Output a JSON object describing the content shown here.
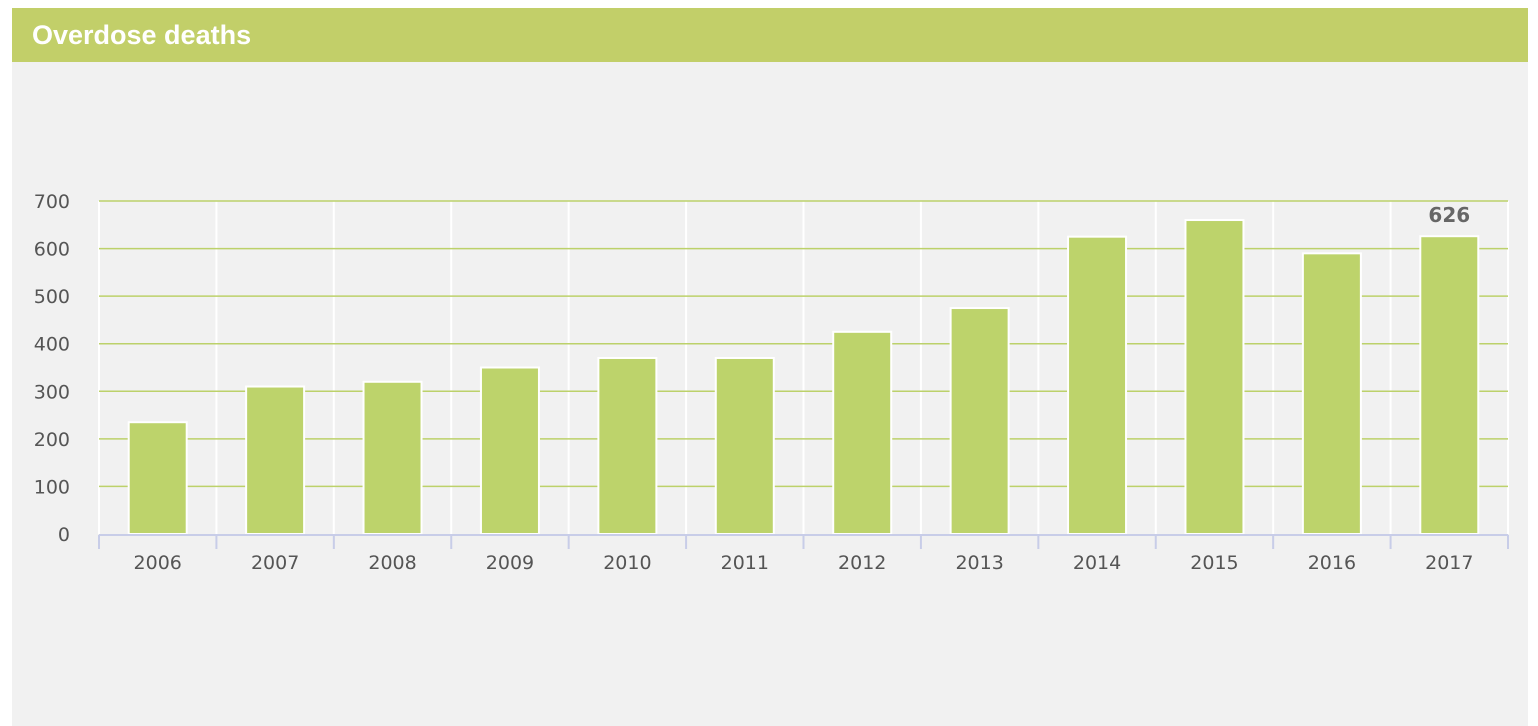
{
  "header": {
    "title": "Overdose deaths"
  },
  "colors": {
    "header_bg": "#c2cf69",
    "bar": "#bdd36b",
    "bar_edge": "#ffffff",
    "gridline": "#bcd16a",
    "panel_bg": "#f1f1f1",
    "axis": "#c8cde8"
  },
  "chart_data": {
    "type": "bar",
    "title": "Overdose deaths",
    "xlabel": "",
    "ylabel": "",
    "categories": [
      "2006",
      "2007",
      "2008",
      "2009",
      "2010",
      "2011",
      "2012",
      "2013",
      "2014",
      "2015",
      "2016",
      "2017"
    ],
    "values": [
      235,
      310,
      320,
      350,
      370,
      370,
      425,
      475,
      625,
      660,
      590,
      626
    ],
    "ylim": [
      0,
      700
    ],
    "yticks": [
      "0",
      "100",
      "200",
      "300",
      "400",
      "500",
      "600",
      "700"
    ],
    "data_labels": [
      {
        "category": "2017",
        "text": "626"
      }
    ],
    "grid": true,
    "legend": "none"
  }
}
